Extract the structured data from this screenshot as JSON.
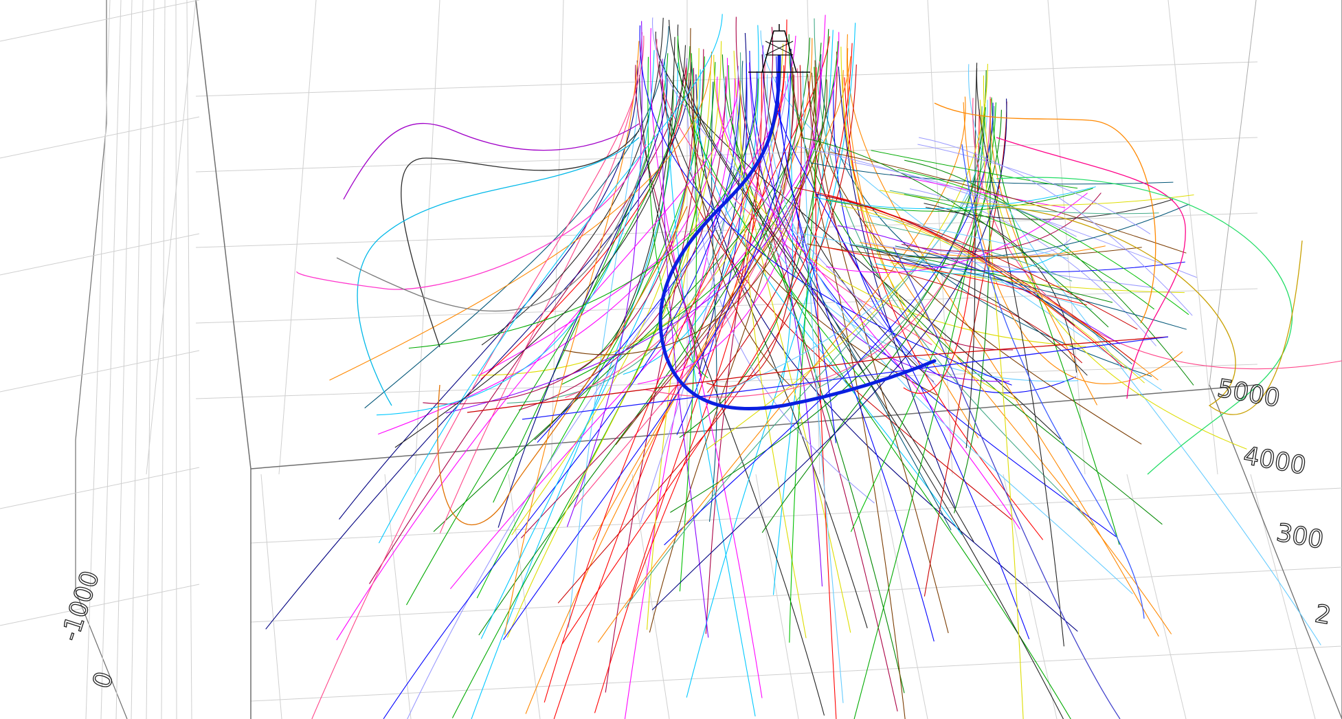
{
  "chart_data": {
    "type": "3d-well-trajectories",
    "axes": {
      "right_axis_ticks": [
        "5000",
        "4000",
        "300",
        "2"
      ],
      "left_axis_ticks": [
        "-1000",
        "0"
      ]
    },
    "highlighted_well": {
      "color": "#0a1fe0"
    },
    "wellhead_marker": "derrick-icon"
  }
}
